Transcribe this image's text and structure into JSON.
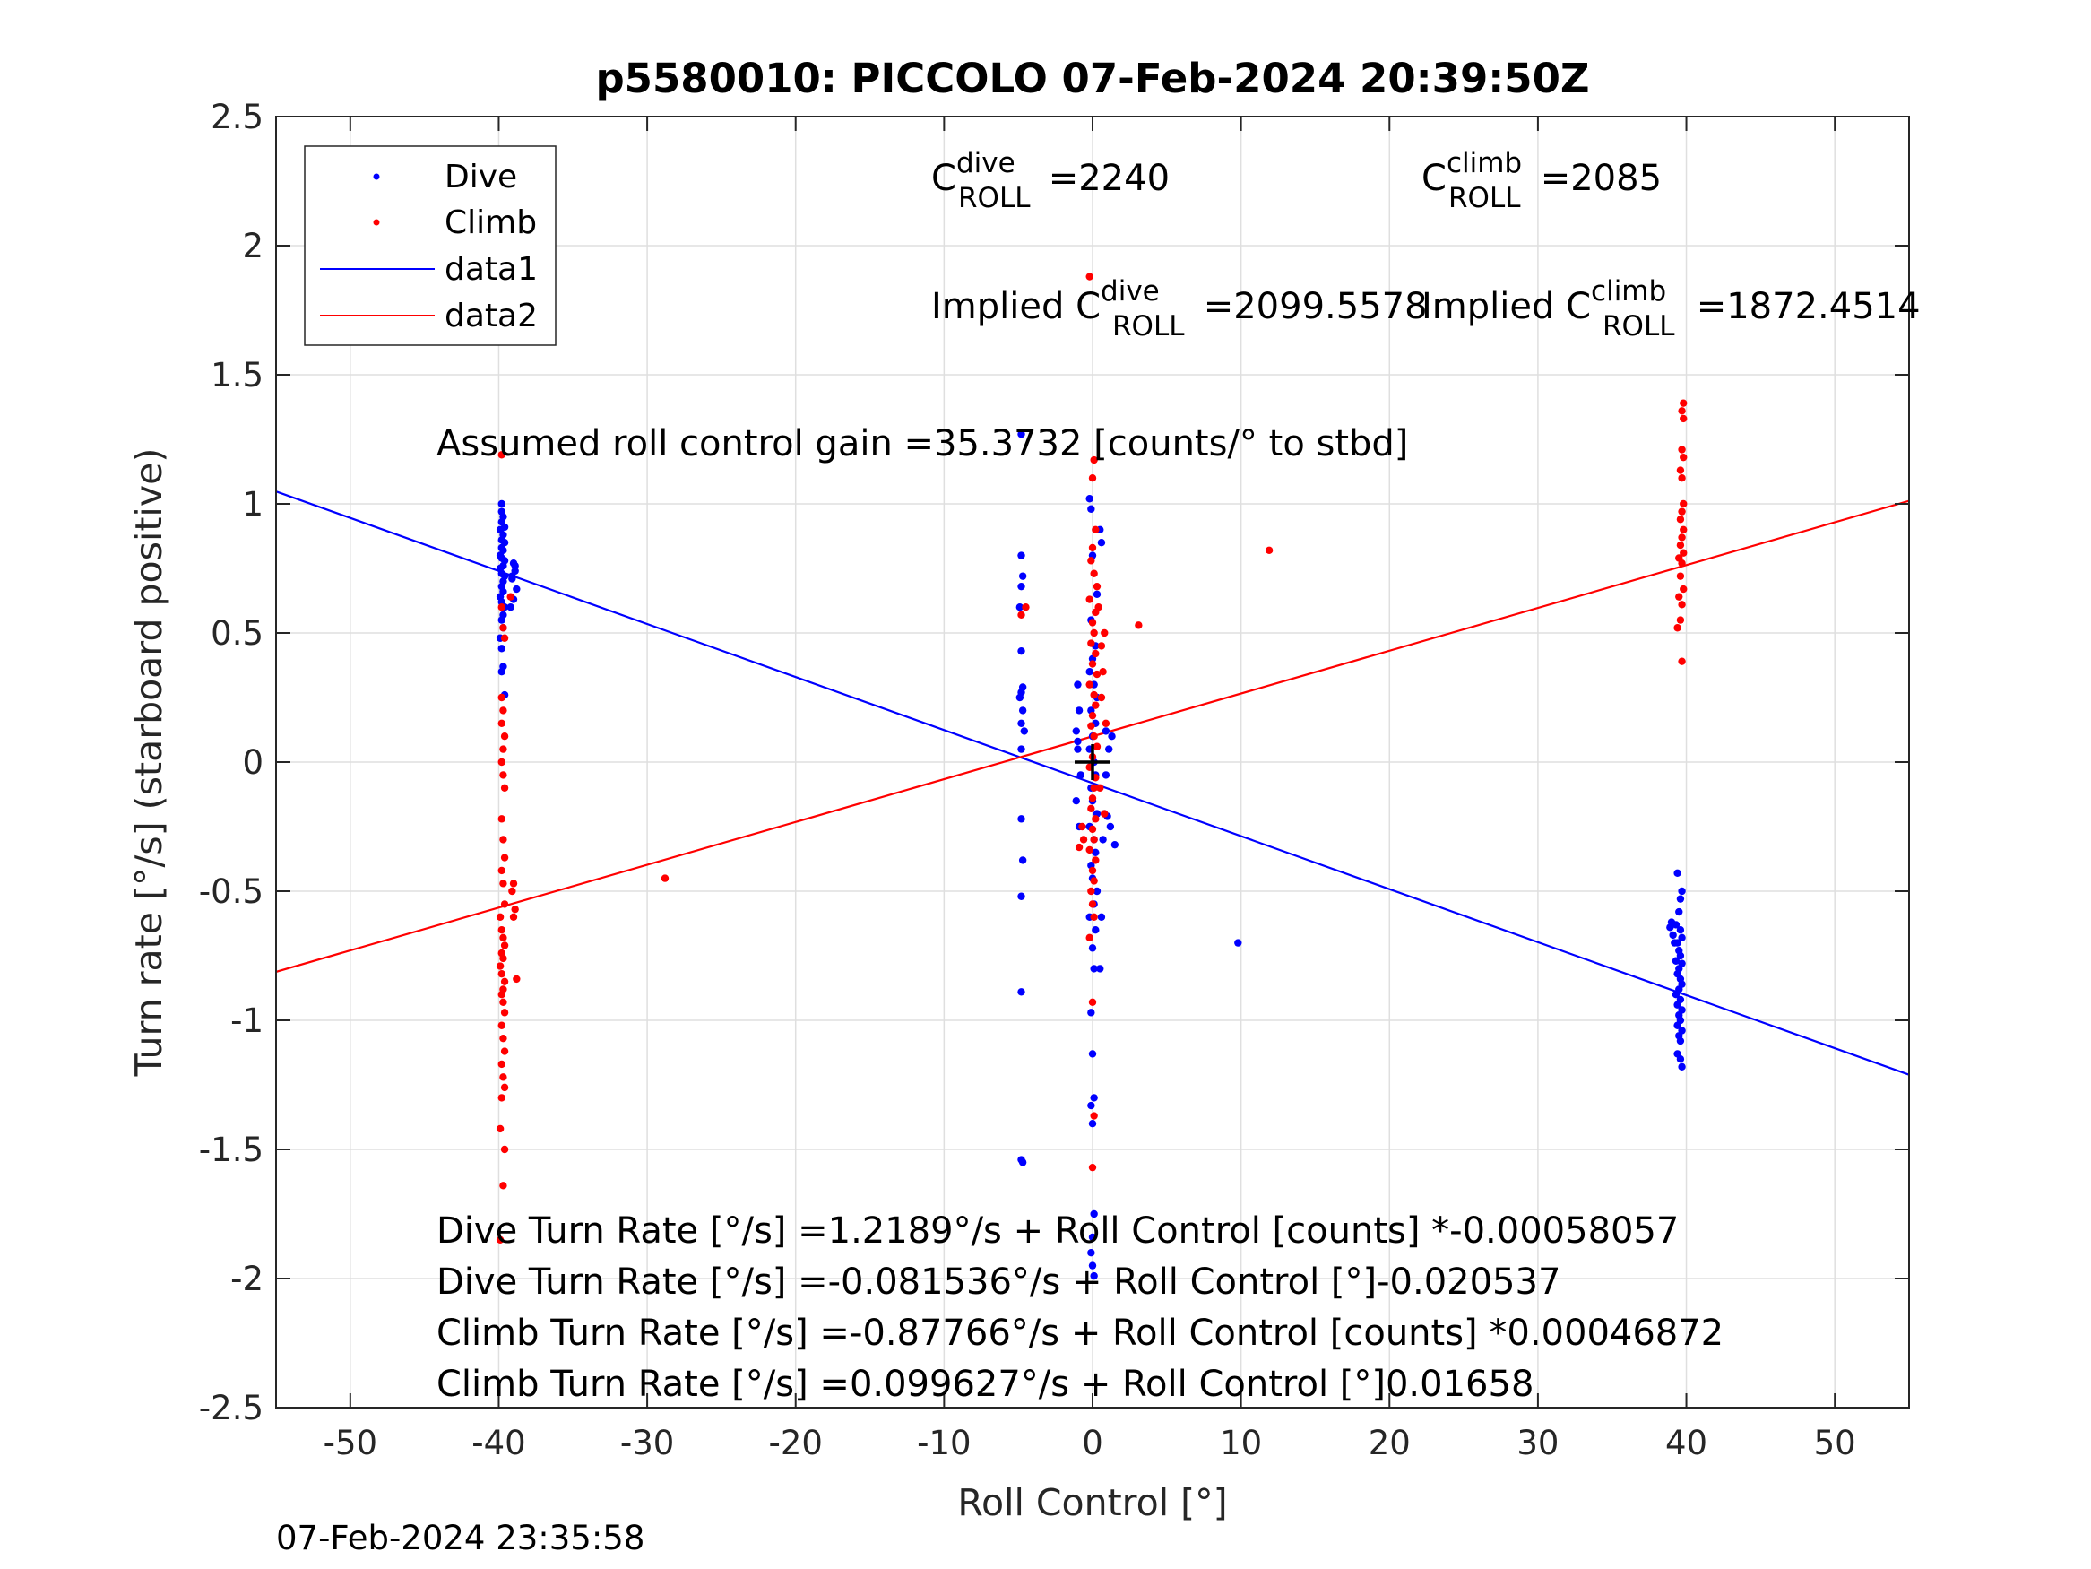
{
  "chart_data": {
    "type": "scatter",
    "title": "p5580010: PICCOLO 07-Feb-2024 20:39:50Z",
    "xlabel": "Roll Control [°]",
    "ylabel": "Turn rate [°/s] (starboard positive)",
    "xlim": [
      -55,
      55
    ],
    "ylim": [
      -2.5,
      2.5
    ],
    "xticks": [
      -50,
      -40,
      -30,
      -20,
      -10,
      0,
      10,
      20,
      30,
      40,
      50
    ],
    "xtick_labels": [
      "-50",
      "-40",
      "-30",
      "-20",
      "-10",
      "0",
      "10",
      "20",
      "30",
      "40",
      "50"
    ],
    "yticks": [
      -2.5,
      -2,
      -1.5,
      -1,
      -0.5,
      0,
      0.5,
      1,
      1.5,
      2,
      2.5
    ],
    "ytick_labels": [
      "-2.5",
      "-2",
      "-1.5",
      "-1",
      "-0.5",
      "0",
      "0.5",
      "1",
      "1.5",
      "2",
      "2.5"
    ],
    "grid": true,
    "legend_position": "top-left",
    "series": [
      {
        "name": "Dive",
        "kind": "points",
        "color": "#0000ff",
        "points": [
          [
            -39.8,
            1.0
          ],
          [
            -39.8,
            0.97
          ],
          [
            -39.7,
            0.95
          ],
          [
            -39.8,
            0.93
          ],
          [
            -39.6,
            0.91
          ],
          [
            -39.9,
            0.9
          ],
          [
            -39.7,
            0.88
          ],
          [
            -39.8,
            0.86
          ],
          [
            -39.6,
            0.85
          ],
          [
            -39.8,
            0.83
          ],
          [
            -39.7,
            0.82
          ],
          [
            -39.9,
            0.8
          ],
          [
            -39.8,
            0.79
          ],
          [
            -39.6,
            0.78
          ],
          [
            -39.7,
            0.76
          ],
          [
            -39.9,
            0.75
          ],
          [
            -39.8,
            0.73
          ],
          [
            -39.6,
            0.72
          ],
          [
            -39.7,
            0.7
          ],
          [
            -39.8,
            0.68
          ],
          [
            -39.7,
            0.66
          ],
          [
            -39.9,
            0.64
          ],
          [
            -39.8,
            0.62
          ],
          [
            -39.6,
            0.6
          ],
          [
            -39.7,
            0.57
          ],
          [
            -39.8,
            0.55
          ],
          [
            -39.7,
            0.52
          ],
          [
            -39.9,
            0.48
          ],
          [
            -39.8,
            0.44
          ],
          [
            -39.7,
            0.37
          ],
          [
            -39.8,
            0.35
          ],
          [
            -39.6,
            0.26
          ],
          [
            -39.0,
            0.77
          ],
          [
            -38.9,
            0.74
          ],
          [
            -39.1,
            0.71
          ],
          [
            -38.8,
            0.67
          ],
          [
            -39.0,
            0.63
          ],
          [
            -39.2,
            0.6
          ],
          [
            -38.9,
            0.76
          ],
          [
            -39.1,
            0.72
          ],
          [
            -4.8,
            0.8
          ],
          [
            -4.7,
            0.72
          ],
          [
            -4.8,
            0.68
          ],
          [
            -4.9,
            0.6
          ],
          [
            -4.8,
            0.43
          ],
          [
            -4.7,
            0.29
          ],
          [
            -4.8,
            0.27
          ],
          [
            -4.9,
            0.25
          ],
          [
            -4.7,
            0.2
          ],
          [
            -4.8,
            0.15
          ],
          [
            -4.6,
            0.12
          ],
          [
            -4.8,
            0.05
          ],
          [
            -4.8,
            -0.22
          ],
          [
            -4.7,
            -0.38
          ],
          [
            -4.8,
            -0.52
          ],
          [
            -4.8,
            -0.89
          ],
          [
            -4.8,
            -1.54
          ],
          [
            -4.7,
            -1.55
          ],
          [
            -4.8,
            1.27
          ],
          [
            -1.0,
            0.3
          ],
          [
            -0.9,
            0.2
          ],
          [
            -1.1,
            0.12
          ],
          [
            -1.0,
            0.05
          ],
          [
            -0.8,
            -0.05
          ],
          [
            -1.1,
            -0.15
          ],
          [
            -0.9,
            -0.25
          ],
          [
            -1.0,
            0.08
          ],
          [
            -0.2,
            1.02
          ],
          [
            -0.1,
            0.98
          ],
          [
            0.0,
            0.8
          ],
          [
            0.3,
            0.65
          ],
          [
            -0.1,
            0.55
          ],
          [
            0.2,
            0.45
          ],
          [
            0.0,
            0.4
          ],
          [
            -0.2,
            0.35
          ],
          [
            0.1,
            0.3
          ],
          [
            0.3,
            0.25
          ],
          [
            -0.1,
            0.2
          ],
          [
            0.2,
            0.15
          ],
          [
            0.0,
            0.1
          ],
          [
            -0.2,
            0.05
          ],
          [
            0.1,
            0.0
          ],
          [
            0.2,
            -0.05
          ],
          [
            -0.1,
            -0.1
          ],
          [
            0.0,
            -0.15
          ],
          [
            0.3,
            -0.2
          ],
          [
            -0.2,
            -0.25
          ],
          [
            0.1,
            -0.3
          ],
          [
            0.2,
            -0.35
          ],
          [
            -0.1,
            -0.4
          ],
          [
            0.0,
            -0.45
          ],
          [
            0.3,
            -0.5
          ],
          [
            0.1,
            -0.55
          ],
          [
            -0.2,
            -0.6
          ],
          [
            0.2,
            -0.65
          ],
          [
            0.0,
            -0.72
          ],
          [
            0.1,
            -0.8
          ],
          [
            -0.1,
            -0.97
          ],
          [
            0.0,
            -1.13
          ],
          [
            0.1,
            -1.3
          ],
          [
            -0.1,
            -1.33
          ],
          [
            0.0,
            -1.4
          ],
          [
            0.1,
            -1.75
          ],
          [
            0.0,
            -1.84
          ],
          [
            -0.1,
            -1.9
          ],
          [
            0.0,
            -1.95
          ],
          [
            0.1,
            -1.99
          ],
          [
            0.5,
            0.9
          ],
          [
            0.6,
            0.85
          ],
          [
            0.5,
            -0.8
          ],
          [
            0.6,
            -0.6
          ],
          [
            0.7,
            -0.3
          ],
          [
            0.8,
            -0.2
          ],
          [
            1.0,
            -0.21
          ],
          [
            1.2,
            -0.25
          ],
          [
            1.5,
            -0.32
          ],
          [
            1.1,
            0.05
          ],
          [
            1.3,
            0.1
          ],
          [
            0.9,
            0.12
          ],
          [
            0.9,
            -0.05
          ],
          [
            9.8,
            -0.7
          ],
          [
            39.4,
            -0.43
          ],
          [
            39.7,
            -0.5
          ],
          [
            39.6,
            -0.53
          ],
          [
            39.5,
            -0.58
          ],
          [
            39.3,
            -0.63
          ],
          [
            39.6,
            -0.65
          ],
          [
            39.7,
            -0.68
          ],
          [
            39.4,
            -0.7
          ],
          [
            39.5,
            -0.73
          ],
          [
            39.6,
            -0.75
          ],
          [
            39.3,
            -0.77
          ],
          [
            39.7,
            -0.78
          ],
          [
            39.5,
            -0.8
          ],
          [
            39.4,
            -0.82
          ],
          [
            39.6,
            -0.84
          ],
          [
            39.7,
            -0.86
          ],
          [
            39.5,
            -0.88
          ],
          [
            39.3,
            -0.9
          ],
          [
            39.6,
            -0.92
          ],
          [
            39.4,
            -0.94
          ],
          [
            39.7,
            -0.96
          ],
          [
            39.5,
            -0.98
          ],
          [
            39.6,
            -1.0
          ],
          [
            39.4,
            -1.02
          ],
          [
            39.7,
            -1.04
          ],
          [
            39.5,
            -1.06
          ],
          [
            39.6,
            -1.08
          ],
          [
            39.4,
            -1.13
          ],
          [
            39.6,
            -1.15
          ],
          [
            39.7,
            -1.18
          ],
          [
            39.0,
            -0.62
          ],
          [
            38.9,
            -0.64
          ],
          [
            39.1,
            -0.67
          ],
          [
            39.2,
            -0.7
          ]
        ]
      },
      {
        "name": "Climb",
        "kind": "points",
        "color": "#ff0000",
        "points": [
          [
            -39.8,
            1.19
          ],
          [
            -39.8,
            0.6
          ],
          [
            -39.7,
            0.52
          ],
          [
            -39.6,
            0.48
          ],
          [
            -39.8,
            0.25
          ],
          [
            -39.7,
            0.2
          ],
          [
            -39.8,
            0.15
          ],
          [
            -39.6,
            0.1
          ],
          [
            -39.7,
            0.05
          ],
          [
            -39.8,
            0.0
          ],
          [
            -39.7,
            -0.05
          ],
          [
            -39.6,
            -0.1
          ],
          [
            -39.8,
            -0.22
          ],
          [
            -39.7,
            -0.3
          ],
          [
            -39.6,
            -0.37
          ],
          [
            -39.8,
            -0.42
          ],
          [
            -39.7,
            -0.47
          ],
          [
            -39.6,
            -0.55
          ],
          [
            -39.9,
            -0.6
          ],
          [
            -39.8,
            -0.65
          ],
          [
            -39.7,
            -0.68
          ],
          [
            -39.6,
            -0.71
          ],
          [
            -39.8,
            -0.74
          ],
          [
            -39.7,
            -0.76
          ],
          [
            -39.9,
            -0.79
          ],
          [
            -39.8,
            -0.82
          ],
          [
            -39.6,
            -0.85
          ],
          [
            -39.7,
            -0.88
          ],
          [
            -39.8,
            -0.9
          ],
          [
            -39.7,
            -0.93
          ],
          [
            -39.6,
            -0.97
          ],
          [
            -39.8,
            -1.02
          ],
          [
            -39.7,
            -1.07
          ],
          [
            -39.6,
            -1.12
          ],
          [
            -39.8,
            -1.17
          ],
          [
            -39.7,
            -1.22
          ],
          [
            -39.6,
            -1.26
          ],
          [
            -39.8,
            -1.3
          ],
          [
            -39.9,
            -1.42
          ],
          [
            -39.6,
            -1.5
          ],
          [
            -39.7,
            -1.64
          ],
          [
            -39.9,
            -1.85
          ],
          [
            -39.0,
            -0.47
          ],
          [
            -39.1,
            -0.5
          ],
          [
            -38.9,
            -0.57
          ],
          [
            -39.0,
            -0.6
          ],
          [
            -38.8,
            -0.84
          ],
          [
            -39.2,
            0.64
          ],
          [
            -28.8,
            -0.45
          ],
          [
            -4.5,
            0.6
          ],
          [
            -4.8,
            0.57
          ],
          [
            -0.2,
            1.88
          ],
          [
            0.1,
            1.17
          ],
          [
            0.0,
            1.1
          ],
          [
            0.2,
            0.9
          ],
          [
            0.0,
            0.83
          ],
          [
            -0.1,
            0.78
          ],
          [
            0.1,
            0.73
          ],
          [
            0.3,
            0.68
          ],
          [
            -0.2,
            0.63
          ],
          [
            0.2,
            0.58
          ],
          [
            0.0,
            0.54
          ],
          [
            0.1,
            0.5
          ],
          [
            -0.1,
            0.46
          ],
          [
            0.2,
            0.42
          ],
          [
            0.0,
            0.38
          ],
          [
            0.3,
            0.34
          ],
          [
            -0.2,
            0.3
          ],
          [
            0.1,
            0.26
          ],
          [
            0.2,
            0.22
          ],
          [
            0.0,
            0.18
          ],
          [
            -0.1,
            0.14
          ],
          [
            0.1,
            0.1
          ],
          [
            0.3,
            0.06
          ],
          [
            0.0,
            0.02
          ],
          [
            -0.2,
            -0.02
          ],
          [
            0.2,
            -0.06
          ],
          [
            0.1,
            -0.1
          ],
          [
            0.0,
            -0.14
          ],
          [
            -0.1,
            -0.18
          ],
          [
            0.2,
            -0.22
          ],
          [
            0.0,
            -0.26
          ],
          [
            0.1,
            -0.3
          ],
          [
            -0.2,
            -0.34
          ],
          [
            0.2,
            -0.38
          ],
          [
            0.0,
            -0.42
          ],
          [
            0.1,
            -0.46
          ],
          [
            -0.1,
            -0.5
          ],
          [
            0.0,
            -0.55
          ],
          [
            0.1,
            -0.6
          ],
          [
            -0.2,
            -0.68
          ],
          [
            0.0,
            -0.93
          ],
          [
            0.1,
            -1.37
          ],
          [
            0.0,
            -1.57
          ],
          [
            0.8,
            0.5
          ],
          [
            0.7,
            0.35
          ],
          [
            0.6,
            0.25
          ],
          [
            0.9,
            0.15
          ],
          [
            0.5,
            -0.1
          ],
          [
            0.8,
            -0.2
          ],
          [
            -0.6,
            -0.3
          ],
          [
            -0.9,
            -0.33
          ],
          [
            -0.7,
            -0.25
          ],
          [
            0.6,
            0.45
          ],
          [
            0.4,
            0.6
          ],
          [
            3.1,
            0.53
          ],
          [
            11.9,
            0.82
          ],
          [
            39.8,
            1.39
          ],
          [
            39.7,
            1.36
          ],
          [
            39.8,
            1.33
          ],
          [
            39.7,
            1.21
          ],
          [
            39.8,
            1.18
          ],
          [
            39.6,
            1.13
          ],
          [
            39.7,
            1.1
          ],
          [
            39.8,
            1.0
          ],
          [
            39.7,
            0.97
          ],
          [
            39.6,
            0.94
          ],
          [
            39.8,
            0.9
          ],
          [
            39.7,
            0.87
          ],
          [
            39.6,
            0.84
          ],
          [
            39.8,
            0.81
          ],
          [
            39.5,
            0.79
          ],
          [
            39.7,
            0.77
          ],
          [
            39.6,
            0.72
          ],
          [
            39.8,
            0.67
          ],
          [
            39.5,
            0.64
          ],
          [
            39.7,
            0.61
          ],
          [
            39.6,
            0.55
          ],
          [
            39.4,
            0.52
          ],
          [
            39.7,
            0.39
          ]
        ]
      },
      {
        "name": "data1",
        "kind": "line",
        "color": "#0000ff",
        "x": [
          -55,
          55
        ],
        "y": [
          1.0481,
          -1.2108
        ]
      },
      {
        "name": "data2",
        "kind": "line",
        "color": "#ff0000",
        "x": [
          -55,
          55
        ],
        "y": [
          -0.8122,
          1.0116
        ]
      }
    ],
    "centroid_marker": {
      "x": 0,
      "y": 0,
      "color": "#000000"
    },
    "annotations": {
      "c_roll_dive": {
        "prefix": "C",
        "sup": "dive",
        "sub": "ROLL",
        "value": " =2240"
      },
      "c_roll_climb": {
        "prefix": "C",
        "sup": "climb",
        "sub": "ROLL",
        "value": " =2085"
      },
      "implied_dive": {
        "prefix": "Implied C",
        "sup": "dive",
        "sub": "ROLL",
        "value": " =2099.5578"
      },
      "implied_climb": {
        "prefix": "Implied C",
        "sup": "climb",
        "sub": "ROLL",
        "value": " =1872.4514"
      },
      "gain": "Assumed roll control gain =35.3732 [counts/° to stbd]",
      "eq_lines": [
        "Dive Turn Rate [°/s] =1.2189°/s + Roll Control [counts] *-0.00058057",
        "Dive Turn Rate [°/s] =-0.081536°/s + Roll Control [°]-0.020537",
        "Climb Turn Rate [°/s] =-0.87766°/s + Roll Control [counts] *0.00046872",
        "Climb Turn Rate [°/s] =0.099627°/s + Roll Control [°]0.01658"
      ]
    },
    "timestamp": "07-Feb-2024 23:35:58"
  }
}
